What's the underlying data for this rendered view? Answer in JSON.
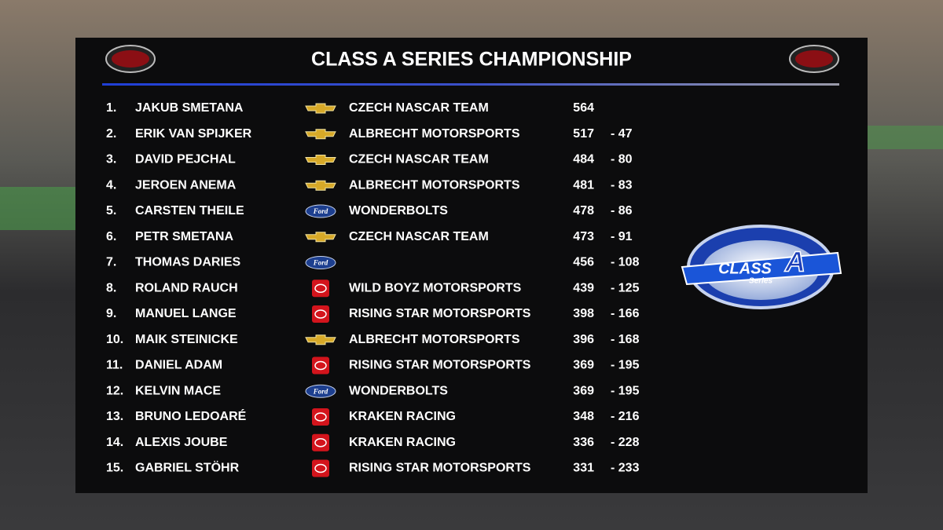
{
  "header": {
    "title": "CLASS A SERIES CHAMPIONSHIP"
  },
  "badge": {
    "main": "CLASS",
    "letter": "A",
    "sub": "Series"
  },
  "table": {
    "rows": [
      {
        "pos": "1.",
        "driver": "JAKUB SMETANA",
        "make": "Chevrolet",
        "team": "CZECH NASCAR TEAM",
        "points": 564,
        "gap": null
      },
      {
        "pos": "2.",
        "driver": "ERIK VAN SPIJKER",
        "make": "Chevrolet",
        "team": "ALBRECHT MOTORSPORTS",
        "points": 517,
        "gap": "- 47"
      },
      {
        "pos": "3.",
        "driver": "DAVID PEJCHAL",
        "make": "Chevrolet",
        "team": "CZECH NASCAR TEAM",
        "points": 484,
        "gap": "- 80"
      },
      {
        "pos": "4.",
        "driver": "JEROEN ANEMA",
        "make": "Chevrolet",
        "team": "ALBRECHT MOTORSPORTS",
        "points": 481,
        "gap": "- 83"
      },
      {
        "pos": "5.",
        "driver": "CARSTEN THEILE",
        "make": "Ford",
        "team": "WONDERBOLTS",
        "points": 478,
        "gap": "- 86"
      },
      {
        "pos": "6.",
        "driver": "PETR SMETANA",
        "make": "Chevrolet",
        "team": "CZECH NASCAR TEAM",
        "points": 473,
        "gap": "- 91"
      },
      {
        "pos": "7.",
        "driver": "THOMAS DARIES",
        "make": "Ford",
        "team": null,
        "points": 456,
        "gap": "- 108"
      },
      {
        "pos": "8.",
        "driver": "ROLAND RAUCH",
        "make": "Toyota",
        "team": "WILD BOYZ MOTORSPORTS",
        "points": 439,
        "gap": "- 125"
      },
      {
        "pos": "9.",
        "driver": "MANUEL LANGE",
        "make": "Toyota",
        "team": "RISING STAR MOTORSPORTS",
        "points": 398,
        "gap": "- 166"
      },
      {
        "pos": "10.",
        "driver": "MAIK STEINICKE",
        "make": "Chevrolet",
        "team": "ALBRECHT MOTORSPORTS",
        "points": 396,
        "gap": "- 168"
      },
      {
        "pos": "11.",
        "driver": "DANIEL ADAM",
        "make": "Toyota",
        "team": "RISING STAR MOTORSPORTS",
        "points": 369,
        "gap": "- 195"
      },
      {
        "pos": "12.",
        "driver": "KELVIN MACE",
        "make": "Ford",
        "team": "WONDERBOLTS",
        "points": 369,
        "gap": "- 195"
      },
      {
        "pos": "13.",
        "driver": "BRUNO LEDOARÉ",
        "make": "Toyota",
        "team": "KRAKEN RACING",
        "points": 348,
        "gap": "- 216"
      },
      {
        "pos": "14.",
        "driver": "ALEXIS JOUBE",
        "make": "Toyota",
        "team": "KRAKEN RACING",
        "points": 336,
        "gap": "- 228"
      },
      {
        "pos": "15.",
        "driver": "GABRIEL STÖHR",
        "make": "Toyota",
        "team": "RISING STAR MOTORSPORTS",
        "points": 331,
        "gap": "- 233"
      }
    ]
  }
}
